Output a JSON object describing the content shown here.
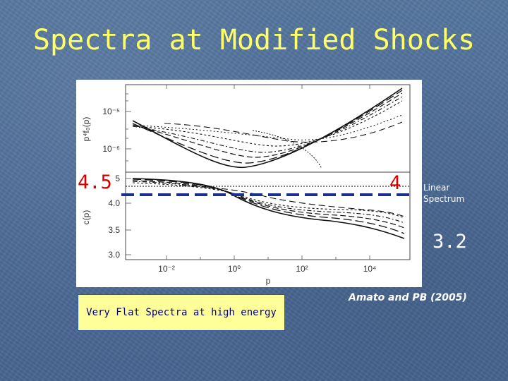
{
  "slide": {
    "title": "Spectra at Modified Shocks",
    "annotations": {
      "left_value": "4.5",
      "right_value": "4",
      "linear_line1": "Linear",
      "linear_line2": "Spectrum",
      "low_value": "3.2",
      "citation": "Amato and PB (2005)",
      "box_text": "Very Flat Spectra at high energy"
    },
    "colors": {
      "title": "#ffff66",
      "highlight": "#d40000",
      "dash": "#1a2f8f",
      "box_fill": "#ffff99",
      "box_text": "#000080"
    }
  },
  "figure": {
    "top_panel": {
      "ylabel": "p⁴f₀(p)",
      "ytick_labels": [
        "10⁻⁵",
        "10⁻⁶"
      ]
    },
    "bottom_panel": {
      "ylabel": "c(p)",
      "ytick_labels": [
        "4.0",
        "3.5",
        "3.0"
      ],
      "ytick_partial": "5"
    },
    "xlabel": "p",
    "xtick_labels": [
      "10⁻²",
      "10⁰",
      "10²",
      "10⁴"
    ]
  }
}
